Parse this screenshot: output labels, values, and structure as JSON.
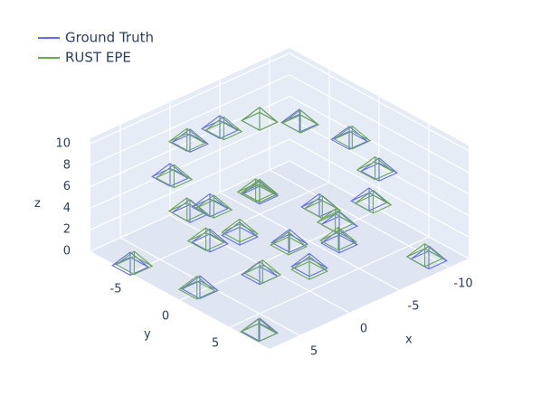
{
  "chart_data": {
    "type": "scatter3d",
    "xlabel": "x",
    "ylabel": "y",
    "zlabel": "z",
    "xlim": [
      -12,
      8
    ],
    "ylim": [
      -9,
      9
    ],
    "zlim": [
      0,
      10.5
    ],
    "xticks": [
      -10,
      -5,
      0,
      5
    ],
    "yticks": [
      -5,
      0,
      5
    ],
    "zticks": [
      0,
      2,
      4,
      6,
      8,
      10
    ],
    "legend": "top-left",
    "series": [
      {
        "name": "Ground Truth",
        "color": "#636efa",
        "x": [
          -6,
          -8,
          -9,
          -8,
          -5,
          -1,
          3,
          5,
          6,
          4,
          0,
          -3,
          -4,
          -6,
          -4,
          0,
          3,
          3,
          0,
          -10,
          6,
          7,
          5,
          -2
        ],
        "y": [
          -6,
          -4,
          0,
          4,
          6,
          7,
          6,
          3,
          -1,
          -5,
          -7,
          -7,
          -4,
          0,
          4,
          5,
          3,
          -2,
          -5,
          7,
          6,
          -6,
          -1,
          -2
        ],
        "z": [
          9,
          9,
          9,
          8.5,
          8,
          8,
          7.5,
          7.5,
          8,
          8.5,
          9,
          9,
          4,
          4,
          3.5,
          3.5,
          3,
          3.5,
          4,
          1,
          0.5,
          1,
          0.5,
          6
        ]
      },
      {
        "name": "RUST EPE",
        "color": "#6aa84f",
        "x": [
          -5.8,
          -8.2,
          -9.1,
          -7.8,
          -5.2,
          -0.8,
          3.2,
          4.8,
          6.1,
          3.8,
          0.2,
          -3.2,
          -3.8,
          -6.2,
          -4.1,
          0.2,
          2.8,
          3.2,
          -0.2,
          -9.8,
          6.2,
          6.8,
          5.1,
          -1.8
        ],
        "y": [
          -5.8,
          -4.1,
          0.2,
          3.8,
          6.2,
          6.8,
          6.1,
          2.8,
          -1.2,
          -4.8,
          -7.1,
          -6.8,
          -4.2,
          0.1,
          3.8,
          5.2,
          3.1,
          -2.2,
          -4.8,
          6.8,
          6.1,
          -5.8,
          -1.2,
          -1.8
        ],
        "z": [
          9.2,
          8.8,
          9.1,
          8.6,
          7.8,
          8.2,
          7.4,
          7.6,
          8.1,
          8.4,
          9.1,
          8.9,
          4.2,
          3.8,
          3.6,
          3.4,
          3.1,
          3.6,
          3.9,
          1.2,
          0.6,
          1.1,
          0.4,
          6.2
        ]
      }
    ]
  }
}
